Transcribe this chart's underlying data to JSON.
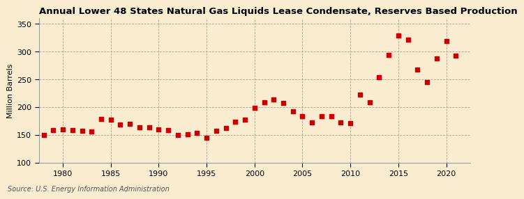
{
  "title": "Annual Lower 48 States Natural Gas Liquids Lease Condensate, Reserves Based Production",
  "ylabel": "Million Barrels",
  "source": "Source: U.S. Energy Information Administration",
  "background_color": "#faecd0",
  "marker_color": "#cc0000",
  "years": [
    1978,
    1979,
    1980,
    1981,
    1982,
    1983,
    1984,
    1985,
    1986,
    1987,
    1988,
    1989,
    1990,
    1991,
    1992,
    1993,
    1994,
    1995,
    1996,
    1997,
    1998,
    1999,
    2000,
    2001,
    2002,
    2003,
    2004,
    2005,
    2006,
    2007,
    2008,
    2009,
    2010,
    2011,
    2012,
    2013,
    2014,
    2015,
    2016,
    2017,
    2018,
    2019,
    2020,
    2021
  ],
  "values": [
    149,
    158,
    160,
    158,
    157,
    156,
    178,
    177,
    168,
    170,
    164,
    163,
    160,
    158,
    149,
    151,
    153,
    144,
    157,
    162,
    173,
    177,
    199,
    208,
    213,
    207,
    192,
    183,
    172,
    183,
    183,
    172,
    171,
    222,
    209,
    254,
    294,
    329,
    321,
    267,
    245,
    287,
    319,
    293
  ],
  "xlim": [
    1977.5,
    2022.5
  ],
  "ylim": [
    100,
    360
  ],
  "xticks": [
    1980,
    1985,
    1990,
    1995,
    2000,
    2005,
    2010,
    2015,
    2020
  ],
  "yticks": [
    100,
    150,
    200,
    250,
    300,
    350
  ],
  "title_fontsize": 9.5,
  "tick_fontsize": 8,
  "ylabel_fontsize": 8,
  "source_fontsize": 7,
  "marker_size": 14
}
